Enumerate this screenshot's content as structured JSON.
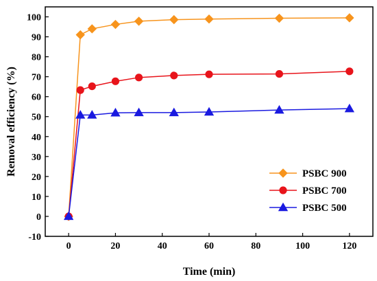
{
  "chart_data": {
    "type": "line",
    "xlabel": "Time (min)",
    "ylabel": "Removal efficiency (%)",
    "xlim": [
      -10,
      130
    ],
    "ylim": [
      -10,
      105
    ],
    "xticks": [
      0,
      20,
      40,
      60,
      80,
      100,
      120
    ],
    "yticks": [
      -10,
      0,
      10,
      20,
      30,
      40,
      50,
      60,
      70,
      80,
      90,
      100
    ],
    "grid": false,
    "legend_position": "bottom-right",
    "x": [
      0,
      5,
      10,
      20,
      30,
      45,
      60,
      90,
      120
    ],
    "series": [
      {
        "name": "PSBC 900",
        "color": "#f7941d",
        "marker": "diamond",
        "values": [
          0,
          91,
          94,
          96.2,
          97.8,
          98.6,
          98.9,
          99.3,
          99.5
        ]
      },
      {
        "name": "PSBC 700",
        "color": "#e8141b",
        "marker": "circle",
        "values": [
          0,
          63.3,
          65.2,
          67.7,
          69.6,
          70.6,
          71.2,
          71.4,
          72.7
        ]
      },
      {
        "name": "PSBC 500",
        "color": "#1a1ae0",
        "marker": "triangle",
        "values": [
          0,
          50.8,
          50.8,
          51.9,
          52.0,
          52.0,
          52.3,
          53.3,
          54.0
        ]
      }
    ]
  }
}
